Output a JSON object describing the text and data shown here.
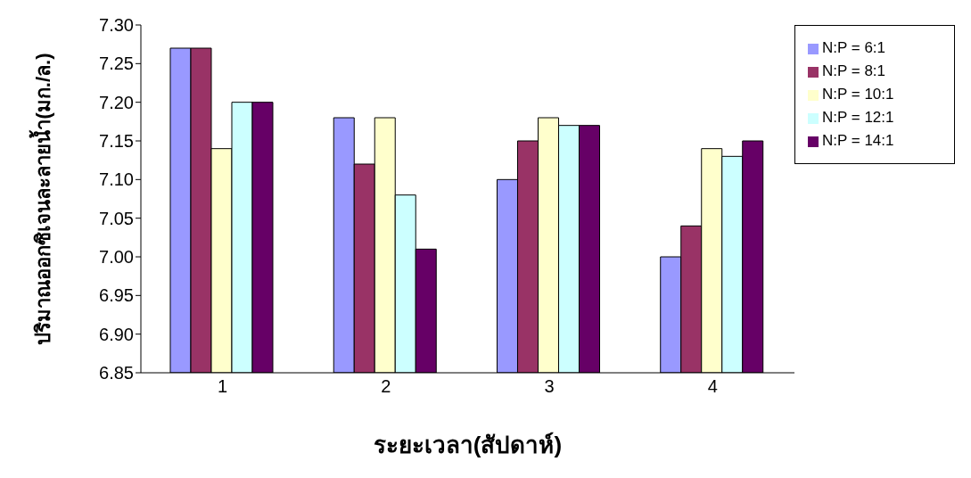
{
  "chart_data": {
    "type": "bar",
    "xlabel": "ระยะเวลา(สัปดาห์)",
    "ylabel": "ปริมาณออกซิเจนละลายน้ำ(มก./ล.)",
    "categories": [
      "1",
      "2",
      "3",
      "4"
    ],
    "series": [
      {
        "name": "N:P = 6:1",
        "color": "#9999ff",
        "values": [
          7.27,
          7.18,
          7.1,
          7.0
        ]
      },
      {
        "name": "N:P = 8:1",
        "color": "#993366",
        "values": [
          7.27,
          7.12,
          7.15,
          7.04
        ]
      },
      {
        "name": "N:P = 10:1",
        "color": "#ffffcc",
        "values": [
          7.14,
          7.18,
          7.18,
          7.14
        ]
      },
      {
        "name": "N:P = 12:1",
        "color": "#ccffff",
        "values": [
          7.2,
          7.08,
          7.17,
          7.13
        ]
      },
      {
        "name": "N:P = 14:1",
        "color": "#660066",
        "values": [
          7.2,
          7.01,
          7.17,
          7.15
        ]
      }
    ],
    "ylim": [
      6.85,
      7.3
    ],
    "yticks": [
      {
        "value": 6.85,
        "label": "6.85"
      },
      {
        "value": 6.9,
        "label": "6.90"
      },
      {
        "value": 6.95,
        "label": "6.95"
      },
      {
        "value": 7.0,
        "label": "7.00"
      },
      {
        "value": 7.05,
        "label": "7.05"
      },
      {
        "value": 7.1,
        "label": "7.10"
      },
      {
        "value": 7.15,
        "label": "7.15"
      },
      {
        "value": 7.2,
        "label": "7.20"
      },
      {
        "value": 7.25,
        "label": "7.25"
      },
      {
        "value": 7.3,
        "label": "7.30"
      }
    ],
    "grid": false,
    "legend": "right"
  }
}
